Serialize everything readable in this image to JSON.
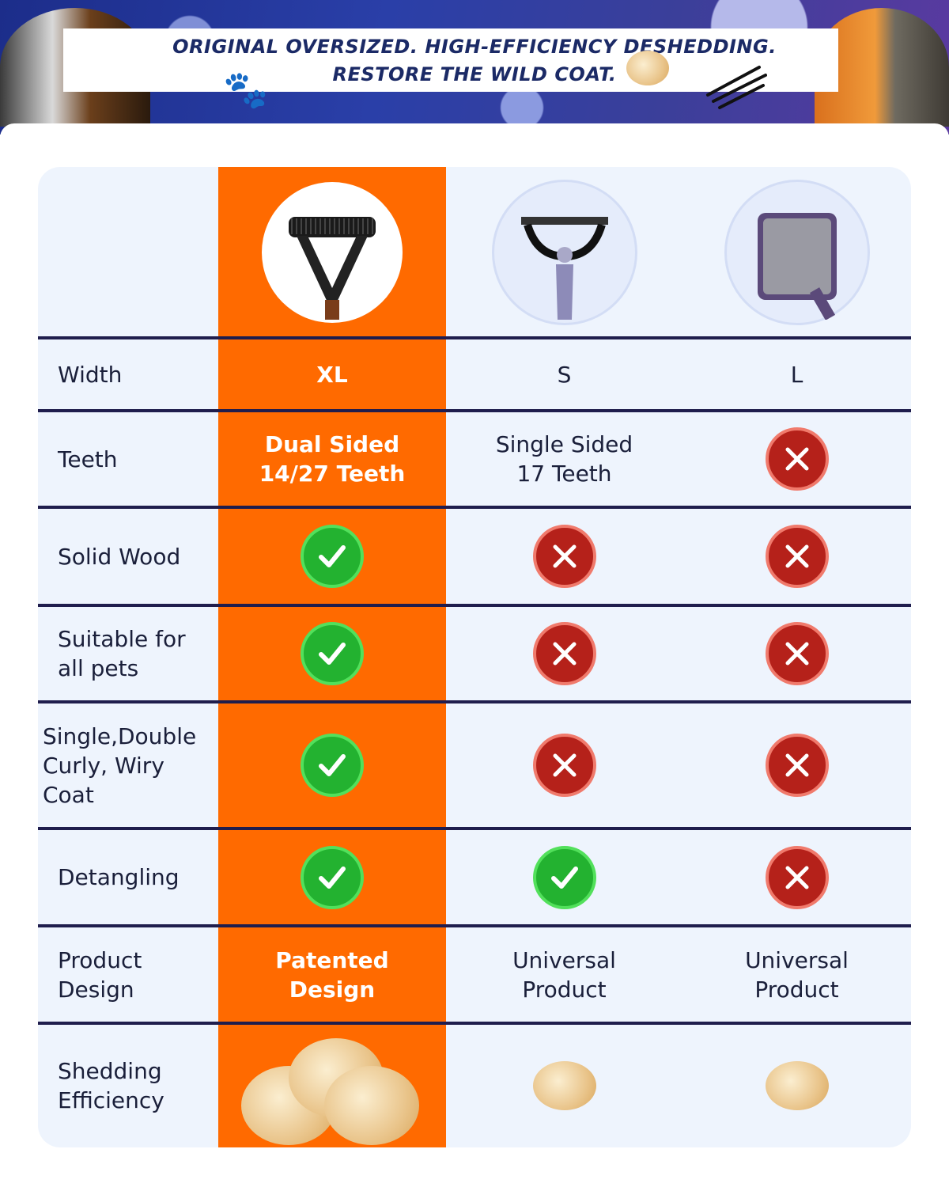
{
  "banner": {
    "line1": "ORIGINAL OVERSIZED. HIGH-EFFICIENCY DESHEDDING.",
    "line2": "RESTORE THE WILD COAT."
  },
  "colors": {
    "highlight": "#ff6a00",
    "table_bg": "#eef4fd",
    "divider": "#1f1d4d",
    "check": "#23b230",
    "cross": "#b5211a"
  },
  "products": [
    {
      "name": "deshedding-tool-xl",
      "icon": "dual-head-deshedder-image",
      "highlight": true
    },
    {
      "name": "deshedding-tool-s",
      "icon": "single-head-deshedder-image"
    },
    {
      "name": "slicker-brush-l",
      "icon": "slicker-brush-image"
    }
  ],
  "rows": [
    {
      "label": "Width",
      "values": [
        "XL",
        "S",
        "L"
      ]
    },
    {
      "label": "Teeth",
      "values": [
        "Dual Sided\n14/27 Teeth",
        "Single Sided\n17 Teeth",
        "cross"
      ]
    },
    {
      "label": "Solid Wood",
      "values": [
        "check",
        "cross",
        "cross"
      ]
    },
    {
      "label": "Suitable for\nall pets",
      "values": [
        "check",
        "cross",
        "cross"
      ]
    },
    {
      "label": "Single,Double\nCurly, Wiry\nCoat",
      "values": [
        "check",
        "cross",
        "cross"
      ]
    },
    {
      "label": "Detangling",
      "values": [
        "check",
        "check",
        "cross"
      ]
    },
    {
      "label": "Product\nDesign",
      "values": [
        "Patented\nDesign",
        "Universal\nProduct",
        "Universal\nProduct"
      ]
    },
    {
      "label": "Shedding\nEfficiency",
      "values": [
        "fur-large",
        "fur-small",
        "fur-small"
      ]
    }
  ]
}
